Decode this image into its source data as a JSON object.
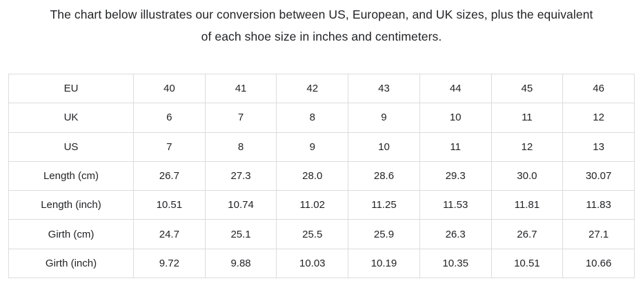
{
  "page": {
    "background": "#ffffff",
    "text_color": "#222326",
    "border_color": "#dcdcdc"
  },
  "heading": {
    "line1": "The chart below illustrates our conversion between US, European, and UK sizes, plus the equivalent",
    "line2": "of each shoe size in inches and centimeters."
  },
  "chart_data": {
    "type": "table",
    "title": "The chart below illustrates our conversion between US, European, and UK sizes, plus the equivalent of each shoe size in inches and centimeters.",
    "layout": {
      "first_column_is_row_header": true,
      "grid": true,
      "cell_text_align": "center"
    },
    "rows": [
      {
        "label": "EU",
        "values": [
          "40",
          "41",
          "42",
          "43",
          "44",
          "45",
          "46"
        ]
      },
      {
        "label": "UK",
        "values": [
          "6",
          "7",
          "8",
          "9",
          "10",
          "11",
          "12"
        ]
      },
      {
        "label": "US",
        "values": [
          "7",
          "8",
          "9",
          "10",
          "11",
          "12",
          "13"
        ]
      },
      {
        "label": "Length (cm)",
        "values": [
          "26.7",
          "27.3",
          "28.0",
          "28.6",
          "29.3",
          "30.0",
          "30.07"
        ]
      },
      {
        "label": "Length (inch)",
        "values": [
          "10.51",
          "10.74",
          "11.02",
          "11.25",
          "11.53",
          "11.81",
          "11.83"
        ]
      },
      {
        "label": "Girth (cm)",
        "values": [
          "24.7",
          "25.1",
          "25.5",
          "25.9",
          "26.3",
          "26.7",
          "27.1"
        ]
      },
      {
        "label": "Girth (inch)",
        "values": [
          "9.72",
          "9.88",
          "10.03",
          "10.19",
          "10.35",
          "10.51",
          "10.66"
        ]
      }
    ]
  }
}
